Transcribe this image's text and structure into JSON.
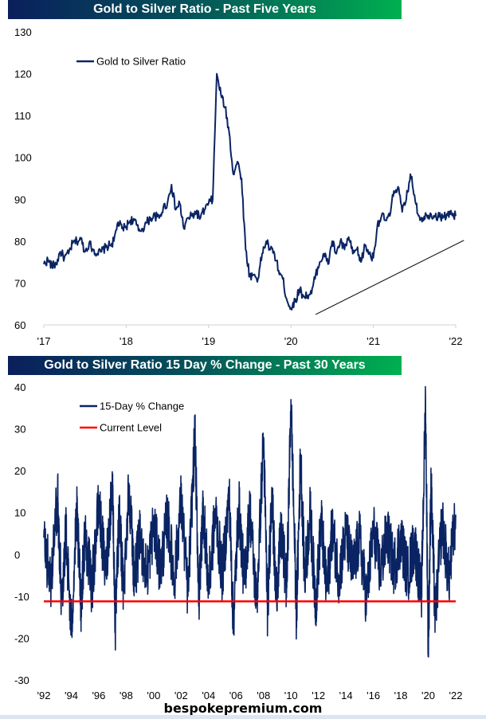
{
  "chart_data": [
    {
      "type": "line",
      "title": "Gold to Silver Ratio - Past Five Years",
      "xlabel": "",
      "ylabel": "",
      "ylim": [
        60,
        130
      ],
      "yticks": [
        "130",
        "120",
        "110",
        "100",
        "90",
        "80",
        "70",
        "60"
      ],
      "xticks": [
        "'17",
        "'18",
        "'19",
        "'20",
        "'21",
        "'22"
      ],
      "xlim": [
        2017.0,
        2022.0
      ],
      "legend": "top-left",
      "series": [
        {
          "name": "Gold to Silver Ratio",
          "color": "#0a2463",
          "x": [
            2017.0,
            2017.05,
            2017.1,
            2017.15,
            2017.2,
            2017.25,
            2017.3,
            2017.35,
            2017.4,
            2017.45,
            2017.5,
            2017.55,
            2017.6,
            2017.65,
            2017.7,
            2017.75,
            2017.8,
            2017.85,
            2017.9,
            2017.95,
            2018.0,
            2018.05,
            2018.1,
            2018.15,
            2018.2,
            2018.25,
            2018.3,
            2018.35,
            2018.4,
            2018.45,
            2018.5,
            2018.55,
            2018.6,
            2018.65,
            2018.7,
            2018.75,
            2018.8,
            2018.85,
            2018.9,
            2018.95,
            2019.0,
            2019.05,
            2019.1,
            2019.15,
            2019.2,
            2019.25,
            2019.3,
            2019.35,
            2019.4,
            2019.45,
            2019.5,
            2019.55,
            2019.6,
            2019.65,
            2019.7,
            2019.75,
            2019.8,
            2019.85,
            2019.9,
            2019.95,
            2020.0,
            2020.05,
            2020.1,
            2020.15,
            2020.2,
            2020.25,
            2020.3,
            2020.35,
            2020.4,
            2020.45,
            2020.5,
            2020.55,
            2020.6,
            2020.65,
            2020.7,
            2020.75,
            2020.8,
            2020.85,
            2020.9,
            2020.95,
            2021.0,
            2021.05,
            2021.1,
            2021.15,
            2021.2,
            2021.25,
            2021.3,
            2021.35,
            2021.4,
            2021.45,
            2021.5,
            2021.55,
            2021.6,
            2021.65,
            2021.7,
            2021.75,
            2021.8,
            2021.85,
            2021.9,
            2021.95,
            2022.0
          ],
          "values": [
            74.5,
            75.5,
            74,
            74.5,
            77.5,
            76,
            77,
            79.5,
            80,
            80.5,
            77.5,
            79.5,
            78,
            77,
            77.5,
            78.5,
            79,
            80,
            84.5,
            83,
            83.5,
            85,
            85,
            82.5,
            83,
            84.5,
            85.5,
            86,
            85.5,
            88,
            89,
            93.5,
            87.5,
            89,
            83,
            85.5,
            86,
            87,
            85.5,
            87.5,
            89,
            90,
            120,
            115,
            112,
            106,
            96,
            99,
            95,
            78,
            71.5,
            72,
            71,
            77,
            80,
            78,
            77,
            73,
            71,
            66,
            64,
            65.5,
            68.5,
            67,
            67,
            67.5,
            72,
            75,
            77,
            74.5,
            80,
            77,
            80,
            78,
            81,
            77,
            78,
            75,
            79,
            77,
            76,
            84,
            86,
            85,
            86,
            92,
            93,
            87,
            90,
            96,
            91,
            86,
            85.5,
            86.2,
            86.5,
            86,
            85.8,
            86,
            86.2,
            86.5,
            86
          ],
          "plot_note_values_interpretation": "approximate weekly-ish trajectory"
        },
        {
          "name": "Trendline",
          "color": "#000000",
          "x": [
            2020.3,
            2022.1
          ],
          "values": [
            62.5,
            80.2
          ]
        }
      ]
    },
    {
      "type": "line",
      "title": "Gold to Silver Ratio 15 Day % Change - Past 30 Years",
      "xlabel": "",
      "ylabel": "",
      "ylim": [
        -30,
        40
      ],
      "yticks": [
        "40",
        "30",
        "20",
        "10",
        "0",
        "-10",
        "-20",
        "-30"
      ],
      "xticks": [
        "'92",
        "'94",
        "'96",
        "'98",
        "'00",
        "'02",
        "'04",
        "'06",
        "'08",
        "'10",
        "'12",
        "'14",
        "'16",
        "'18",
        "'20",
        "'22"
      ],
      "xlim": [
        1992.0,
        2022.0
      ],
      "legend": "top-left",
      "series": [
        {
          "name": "15-Day % Change",
          "color": "#0a2463",
          "x": [
            1992.0,
            1992.5,
            1993.0,
            1993.3,
            1993.6,
            1994.0,
            1994.4,
            1994.7,
            1995.0,
            1995.5,
            1996.0,
            1996.5,
            1997.0,
            1997.2,
            1997.5,
            1997.8,
            1998.2,
            1998.6,
            1999.0,
            1999.5,
            2000.0,
            2000.5,
            2001.0,
            2001.5,
            2002.0,
            2002.5,
            2003.0,
            2003.3,
            2003.6,
            2004.0,
            2004.5,
            2005.0,
            2005.5,
            2005.8,
            2006.2,
            2006.6,
            2007.0,
            2007.5,
            2008.0,
            2008.3,
            2008.6,
            2008.9,
            2009.3,
            2009.7,
            2010.0,
            2010.4,
            2010.7,
            2011.0,
            2011.4,
            2011.8,
            2012.2,
            2012.6,
            2013.0,
            2013.5,
            2014.0,
            2014.5,
            2015.0,
            2015.5,
            2016.0,
            2016.5,
            2017.0,
            2017.5,
            2018.0,
            2018.5,
            2019.0,
            2019.5,
            2019.8,
            2020.0,
            2020.2,
            2020.5,
            2021.0,
            2021.5,
            2022.0
          ],
          "values": [
            4,
            -7,
            14,
            -11,
            6,
            -18.5,
            10,
            -12,
            5,
            -8,
            12,
            -5,
            18,
            -17.5,
            10,
            -9,
            17,
            -6,
            4,
            -5,
            7,
            -4,
            9,
            -6,
            13,
            -10,
            29,
            -11,
            12,
            -8,
            10,
            -5,
            14,
            -16.5,
            12,
            -7,
            11,
            -12,
            28,
            -14,
            16,
            -10,
            5,
            -8,
            37,
            -15,
            24,
            -6,
            10,
            -12,
            8,
            -9,
            6,
            -5,
            5,
            -4,
            4,
            -11,
            6,
            -4,
            5,
            -3,
            4,
            -5,
            3,
            -10,
            37,
            -23,
            17,
            -15,
            8,
            -6,
            9.5
          ]
        },
        {
          "name": "Current Level",
          "color": "#ff0000",
          "x": [
            1992.0,
            2022.0
          ],
          "values": [
            -11.2,
            -11.2
          ]
        }
      ]
    }
  ],
  "footer": {
    "source": "bespokepremium.com"
  }
}
